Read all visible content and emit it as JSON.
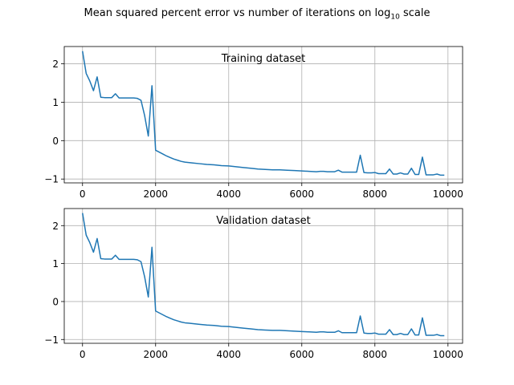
{
  "figure": {
    "title_prefix": "Mean squared percent error vs number of iterations on log",
    "title_sub": "10",
    "title_suffix": " scale"
  },
  "chart_data": [
    {
      "type": "line",
      "title": "Training dataset",
      "xlabel": "",
      "ylabel": "",
      "xlim": [
        -500,
        10400
      ],
      "ylim": [
        -1.1,
        2.45
      ],
      "xticks": [
        0,
        2000,
        4000,
        6000,
        8000,
        10000
      ],
      "yticks": [
        -1,
        0,
        1,
        2
      ],
      "grid": true,
      "color": "#1f77b4",
      "x": [
        0,
        100,
        200,
        300,
        400,
        500,
        600,
        700,
        800,
        900,
        1000,
        1100,
        1200,
        1300,
        1400,
        1500,
        1600,
        1700,
        1800,
        1900,
        2000,
        2100,
        2200,
        2300,
        2400,
        2500,
        2600,
        2700,
        2800,
        2900,
        3000,
        3200,
        3400,
        3600,
        3800,
        4000,
        4200,
        4400,
        4600,
        4800,
        5000,
        5200,
        5400,
        5600,
        5800,
        6000,
        6200,
        6400,
        6500,
        6600,
        6700,
        6800,
        6900,
        7000,
        7100,
        7200,
        7300,
        7400,
        7500,
        7600,
        7700,
        7800,
        7900,
        8000,
        8100,
        8200,
        8300,
        8400,
        8500,
        8600,
        8700,
        8800,
        8900,
        9000,
        9100,
        9200,
        9300,
        9400,
        9500,
        9600,
        9700,
        9800,
        9900
      ],
      "y": [
        2.33,
        1.75,
        1.55,
        1.3,
        1.66,
        1.13,
        1.12,
        1.12,
        1.12,
        1.22,
        1.11,
        1.11,
        1.11,
        1.11,
        1.11,
        1.1,
        1.05,
        0.65,
        0.12,
        1.43,
        -0.25,
        -0.3,
        -0.35,
        -0.4,
        -0.44,
        -0.48,
        -0.51,
        -0.54,
        -0.56,
        -0.57,
        -0.58,
        -0.6,
        -0.62,
        -0.63,
        -0.65,
        -0.66,
        -0.68,
        -0.7,
        -0.72,
        -0.74,
        -0.75,
        -0.76,
        -0.76,
        -0.77,
        -0.78,
        -0.79,
        -0.8,
        -0.81,
        -0.8,
        -0.8,
        -0.81,
        -0.81,
        -0.81,
        -0.77,
        -0.82,
        -0.82,
        -0.82,
        -0.82,
        -0.82,
        -0.38,
        -0.83,
        -0.84,
        -0.84,
        -0.83,
        -0.86,
        -0.86,
        -0.86,
        -0.74,
        -0.87,
        -0.87,
        -0.84,
        -0.87,
        -0.87,
        -0.72,
        -0.88,
        -0.88,
        -0.43,
        -0.89,
        -0.89,
        -0.89,
        -0.87,
        -0.9,
        -0.9
      ]
    },
    {
      "type": "line",
      "title": "Validation dataset",
      "xlabel": "",
      "ylabel": "",
      "xlim": [
        -500,
        10400
      ],
      "ylim": [
        -1.1,
        2.45
      ],
      "xticks": [
        0,
        2000,
        4000,
        6000,
        8000,
        10000
      ],
      "yticks": [
        -1,
        0,
        1,
        2
      ],
      "grid": true,
      "color": "#1f77b4",
      "x": [
        0,
        100,
        200,
        300,
        400,
        500,
        600,
        700,
        800,
        900,
        1000,
        1100,
        1200,
        1300,
        1400,
        1500,
        1600,
        1700,
        1800,
        1900,
        2000,
        2100,
        2200,
        2300,
        2400,
        2500,
        2600,
        2700,
        2800,
        2900,
        3000,
        3200,
        3400,
        3600,
        3800,
        4000,
        4200,
        4400,
        4600,
        4800,
        5000,
        5200,
        5400,
        5600,
        5800,
        6000,
        6200,
        6400,
        6500,
        6600,
        6700,
        6800,
        6900,
        7000,
        7100,
        7200,
        7300,
        7400,
        7500,
        7600,
        7700,
        7800,
        7900,
        8000,
        8100,
        8200,
        8300,
        8400,
        8500,
        8600,
        8700,
        8800,
        8900,
        9000,
        9100,
        9200,
        9300,
        9400,
        9500,
        9600,
        9700,
        9800,
        9900
      ],
      "y": [
        2.33,
        1.75,
        1.55,
        1.3,
        1.66,
        1.13,
        1.12,
        1.12,
        1.12,
        1.22,
        1.11,
        1.11,
        1.11,
        1.11,
        1.11,
        1.1,
        1.05,
        0.65,
        0.12,
        1.43,
        -0.25,
        -0.3,
        -0.35,
        -0.4,
        -0.44,
        -0.48,
        -0.51,
        -0.54,
        -0.56,
        -0.57,
        -0.58,
        -0.6,
        -0.62,
        -0.63,
        -0.65,
        -0.66,
        -0.68,
        -0.7,
        -0.72,
        -0.74,
        -0.75,
        -0.76,
        -0.76,
        -0.77,
        -0.78,
        -0.79,
        -0.8,
        -0.81,
        -0.8,
        -0.8,
        -0.81,
        -0.81,
        -0.81,
        -0.77,
        -0.82,
        -0.82,
        -0.82,
        -0.82,
        -0.82,
        -0.38,
        -0.83,
        -0.84,
        -0.84,
        -0.83,
        -0.86,
        -0.86,
        -0.86,
        -0.74,
        -0.87,
        -0.87,
        -0.84,
        -0.87,
        -0.87,
        -0.72,
        -0.88,
        -0.88,
        -0.43,
        -0.89,
        -0.89,
        -0.89,
        -0.87,
        -0.9,
        -0.9
      ]
    }
  ]
}
